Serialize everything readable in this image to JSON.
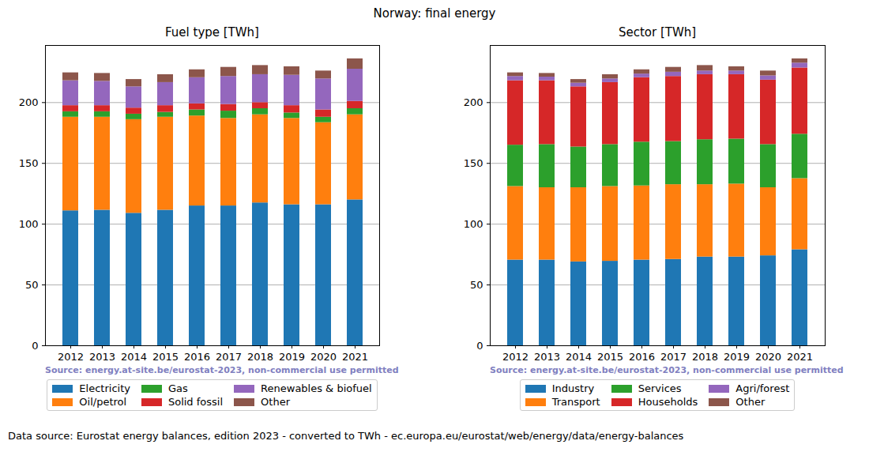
{
  "title": "Norway: final energy",
  "footer": "Data source: Eurostat energy balances, edition 2023 - converted to TWh - ec.europa.eu/eurostat/web/energy/data/energy-balances",
  "chart_data": [
    {
      "type": "bar",
      "title": "Fuel type [TWh]",
      "stacked": true,
      "grid": true,
      "legend": "bottom",
      "source": "Source: energy.at-site.be/eurostat-2023, non-commercial use permitted",
      "x": [
        2012,
        2013,
        2014,
        2015,
        2016,
        2017,
        2018,
        2019,
        2020,
        2021
      ],
      "ylim": [
        0,
        247
      ],
      "yticks": [
        0,
        50,
        100,
        150,
        200
      ],
      "series": [
        {
          "name": "Electricity",
          "color": "#1f77b4",
          "values": [
            111,
            111.5,
            109,
            111.5,
            115,
            115,
            117.5,
            116,
            116,
            120
          ]
        },
        {
          "name": "Oil/petrol",
          "color": "#ff7f0e",
          "values": [
            77,
            76.5,
            77,
            76.5,
            74,
            72,
            72.5,
            71,
            67.5,
            70
          ]
        },
        {
          "name": "Gas",
          "color": "#2ca02c",
          "values": [
            4.5,
            4.5,
            4.5,
            4,
            5,
            6,
            5,
            4.5,
            4.5,
            5
          ]
        },
        {
          "name": "Solid fossil",
          "color": "#d62728",
          "values": [
            5,
            5,
            5,
            5.5,
            5,
            5.5,
            5,
            6,
            6,
            6
          ]
        },
        {
          "name": "Renewables & biofuel",
          "color": "#9467bd",
          "values": [
            20.5,
            20,
            17.5,
            19,
            21.5,
            23,
            23,
            25,
            25.5,
            26.5
          ]
        },
        {
          "name": "Other",
          "color": "#8c564b",
          "values": [
            6.5,
            6.5,
            6,
            6.5,
            6.5,
            7.5,
            7.5,
            7,
            6.5,
            8.5
          ]
        }
      ]
    },
    {
      "type": "bar",
      "title": "Sector [TWh]",
      "stacked": true,
      "grid": true,
      "legend": "bottom",
      "source": "Source: energy.at-site.be/eurostat-2023, non-commercial use permitted",
      "x": [
        2012,
        2013,
        2014,
        2015,
        2016,
        2017,
        2018,
        2019,
        2020,
        2021
      ],
      "ylim": [
        0,
        247
      ],
      "yticks": [
        0,
        50,
        100,
        150,
        200
      ],
      "series": [
        {
          "name": "Industry",
          "color": "#1f77b4",
          "values": [
            70.5,
            70.5,
            69,
            69.5,
            70.5,
            71,
            73,
            73,
            74,
            79
          ]
        },
        {
          "name": "Transport",
          "color": "#ff7f0e",
          "values": [
            60.5,
            59.5,
            61,
            61.5,
            61,
            61.5,
            59.5,
            60,
            56,
            58.5
          ]
        },
        {
          "name": "Services",
          "color": "#2ca02c",
          "values": [
            34,
            35.5,
            33.5,
            34.5,
            36,
            35.5,
            37,
            37,
            35.5,
            36.5
          ]
        },
        {
          "name": "Households",
          "color": "#d62728",
          "values": [
            53,
            52.5,
            49.5,
            51,
            53,
            53.5,
            53.5,
            53,
            53,
            54.5
          ]
        },
        {
          "name": "Agri/forest",
          "color": "#9467bd",
          "values": [
            3.5,
            3,
            3,
            3,
            3,
            3.5,
            3,
            3,
            3.5,
            4
          ]
        },
        {
          "name": "Other",
          "color": "#8c564b",
          "values": [
            3,
            3,
            3,
            3.5,
            3.5,
            4,
            4.5,
            3.5,
            4,
            3.5
          ]
        }
      ]
    }
  ]
}
